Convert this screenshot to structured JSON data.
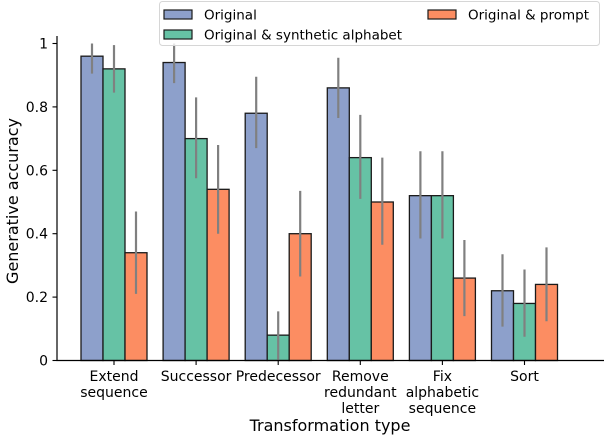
{
  "chart_data": {
    "type": "bar",
    "title": "",
    "xlabel": "Transformation type",
    "ylabel": "Generative accuracy",
    "ylim": [
      0,
      1
    ],
    "yticks": [
      0,
      0.2,
      0.4,
      0.6,
      0.8,
      1
    ],
    "ytick_labels": [
      "0",
      "0.2",
      "0.4",
      "0.6",
      "0.8",
      "1"
    ],
    "grid": false,
    "legend_position": "top-right",
    "categories": [
      [
        "Extend",
        "sequence"
      ],
      [
        "Successor"
      ],
      [
        "Predecessor"
      ],
      [
        "Remove",
        "redundant",
        "letter"
      ],
      [
        "Fix",
        "alphabetic",
        "sequence"
      ],
      [
        "Sort"
      ]
    ],
    "series": [
      {
        "name": "Original",
        "color": "#8da0cb",
        "values": [
          0.96,
          0.94,
          0.78,
          0.86,
          0.52,
          0.22
        ],
        "error_low": [
          0.905,
          0.875,
          0.67,
          0.765,
          0.385,
          0.107
        ],
        "error_high": [
          1.0,
          1.0,
          0.895,
          0.955,
          0.66,
          0.335
        ]
      },
      {
        "name": "Original & synthetic alphabet",
        "color": "#66c2a5",
        "values": [
          0.92,
          0.7,
          0.08,
          0.64,
          0.52,
          0.18
        ],
        "error_low": [
          0.845,
          0.575,
          0.0,
          0.51,
          0.385,
          0.075
        ],
        "error_high": [
          0.995,
          0.83,
          0.155,
          0.775,
          0.66,
          0.287
        ]
      },
      {
        "name": "Original & prompt",
        "color": "#fc8d62",
        "values": [
          0.34,
          0.54,
          0.4,
          0.5,
          0.26,
          0.24
        ],
        "error_low": [
          0.21,
          0.4,
          0.265,
          0.365,
          0.14,
          0.124
        ],
        "error_high": [
          0.47,
          0.68,
          0.535,
          0.64,
          0.38,
          0.357
        ]
      }
    ],
    "legend_order": [
      0,
      2,
      1
    ]
  }
}
